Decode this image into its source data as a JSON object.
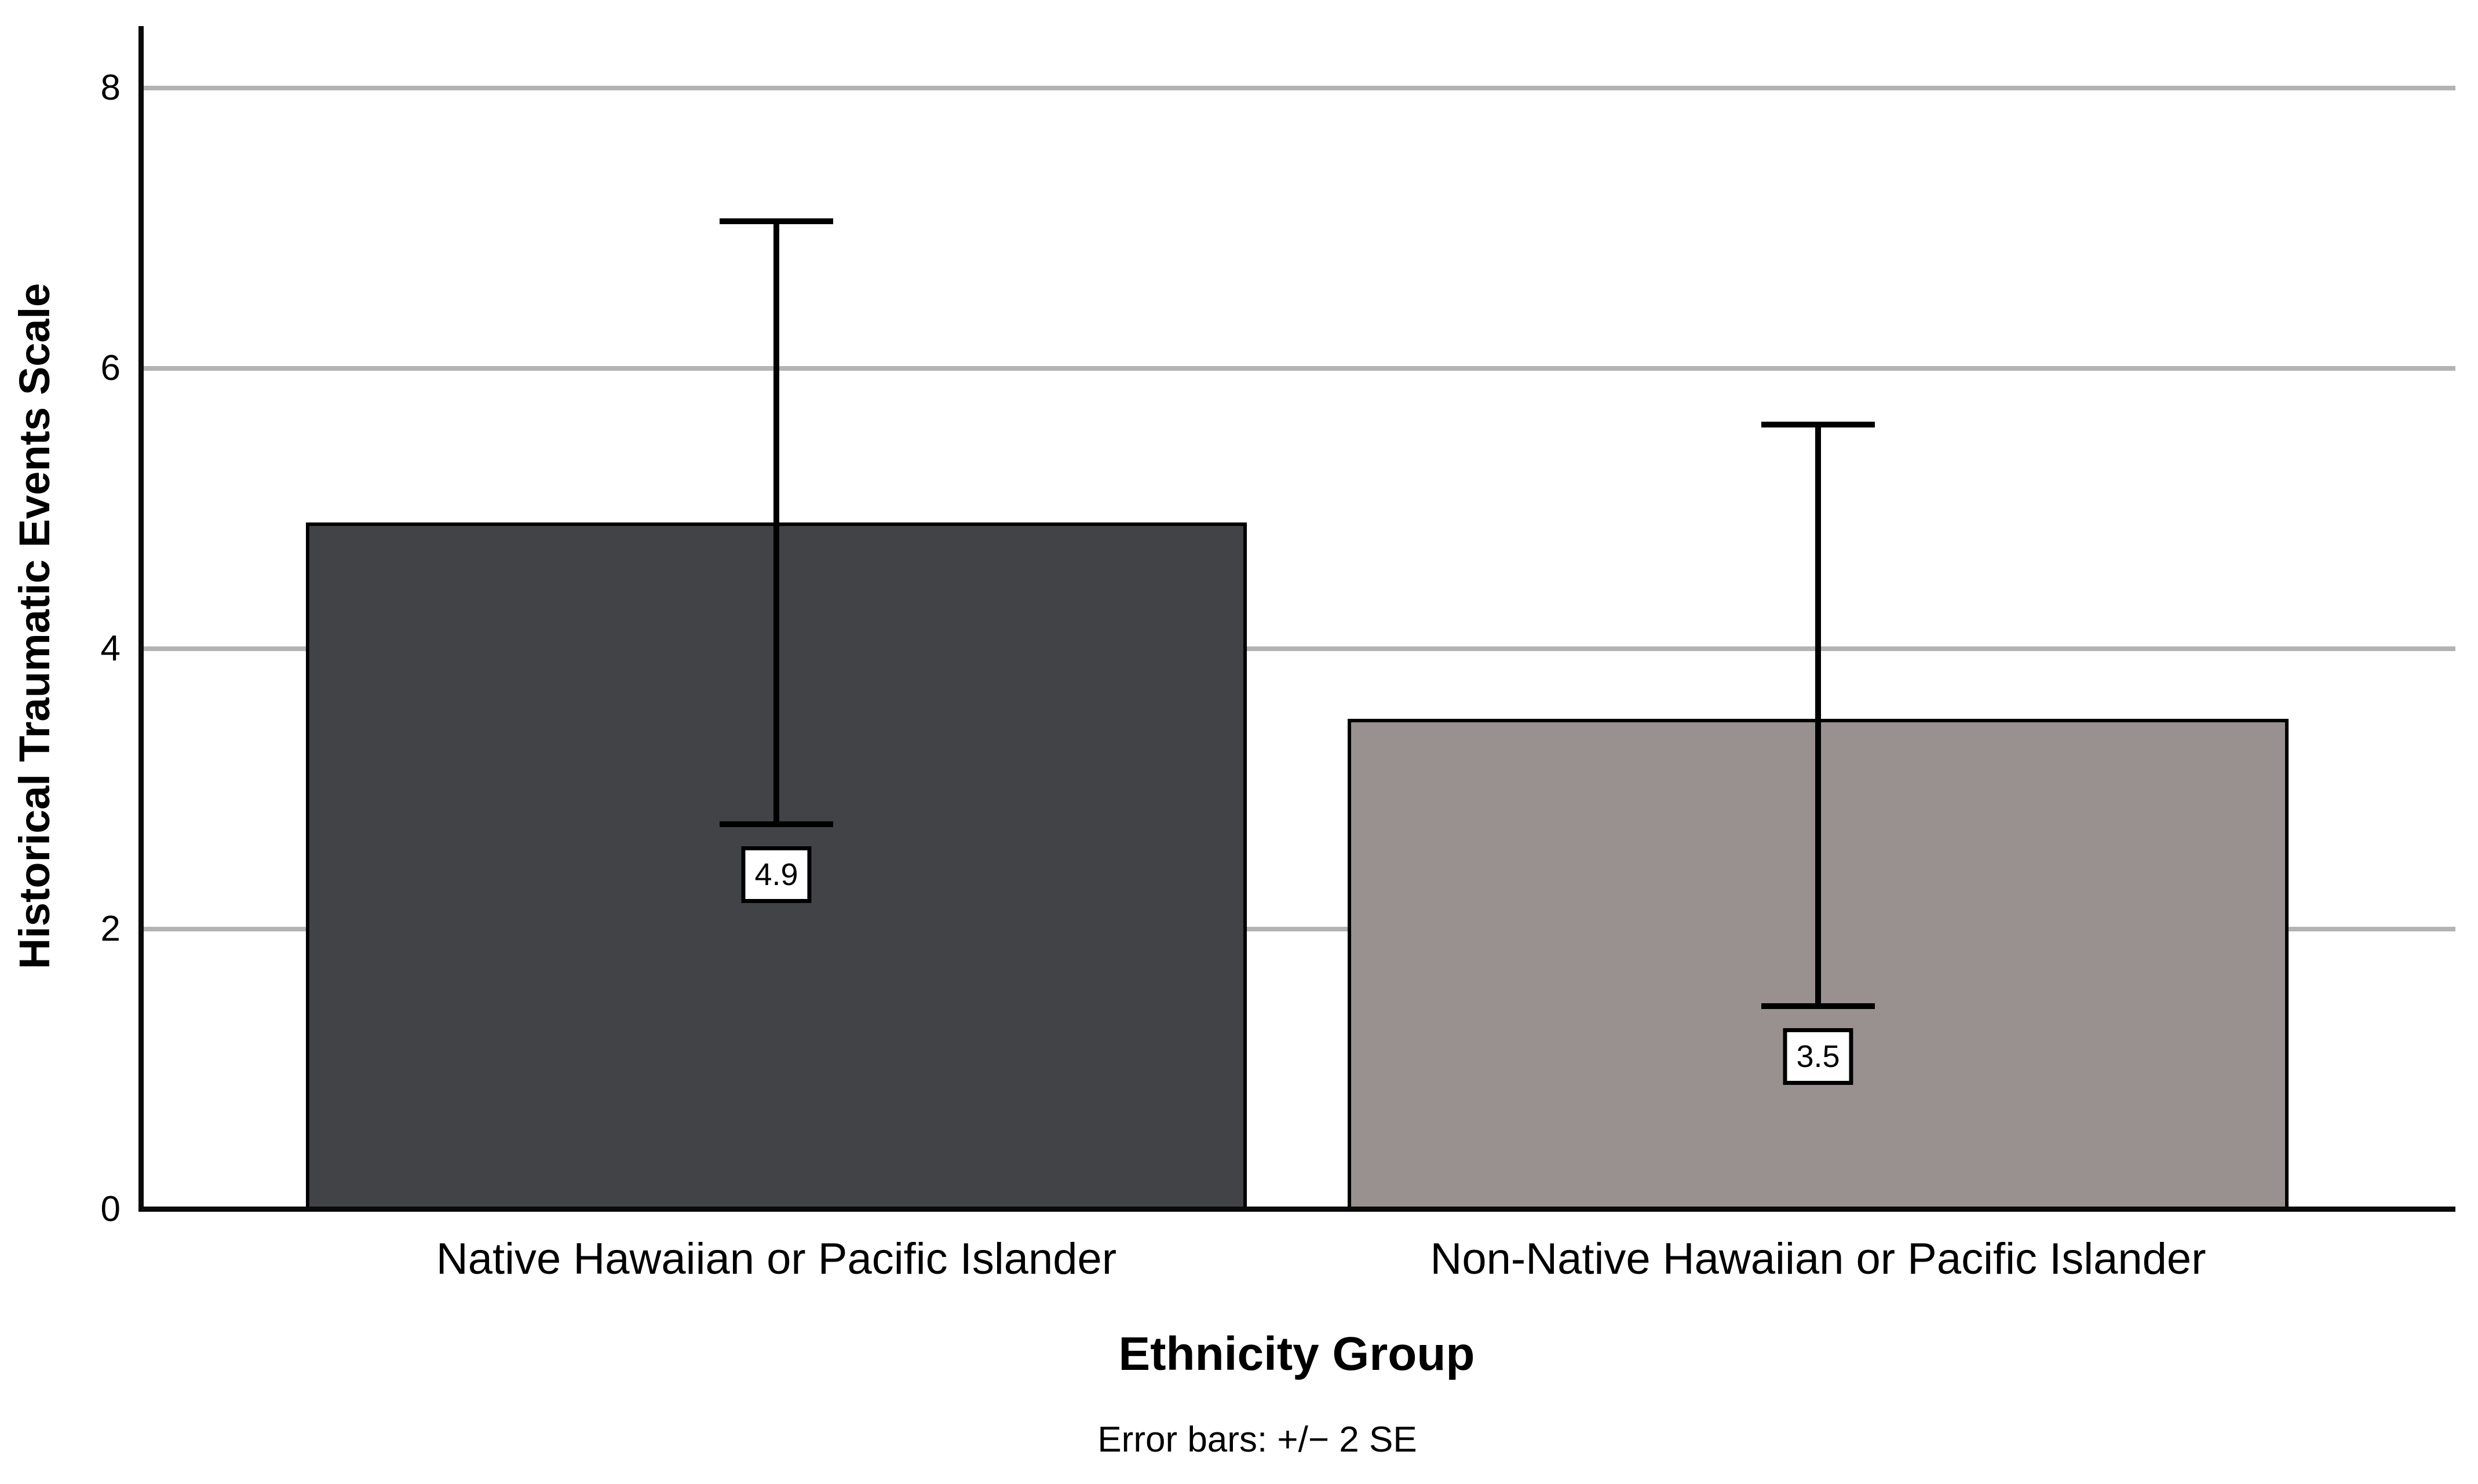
{
  "chart_data": {
    "type": "bar",
    "title": "",
    "ylabel": "Historical Traumatic Events Scale",
    "xlabel": "Ethnicity Group",
    "footnote": "Error bars: +/− 2 SE",
    "categories": [
      "Native Hawaiian or Pacific Islander",
      "Non-Native Hawaiian or Pacific Islander"
    ],
    "values": [
      4.9,
      3.5
    ],
    "value_labels": [
      "4.9",
      "3.5"
    ],
    "error_bars": {
      "definition": "+/- 2 SE",
      "low": [
        2.75,
        1.45
      ],
      "high": [
        7.05,
        5.6
      ]
    },
    "bar_colors": [
      "#424347",
      "#98918f"
    ],
    "bar_border_color": "#000000",
    "axis_color": "#0a0a0a",
    "grid_color": "#b3b3b5",
    "ylim": [
      0,
      8
    ],
    "yticks": [
      0,
      2,
      4,
      6,
      8
    ],
    "grid": "horizontal-only",
    "legend": "none"
  }
}
